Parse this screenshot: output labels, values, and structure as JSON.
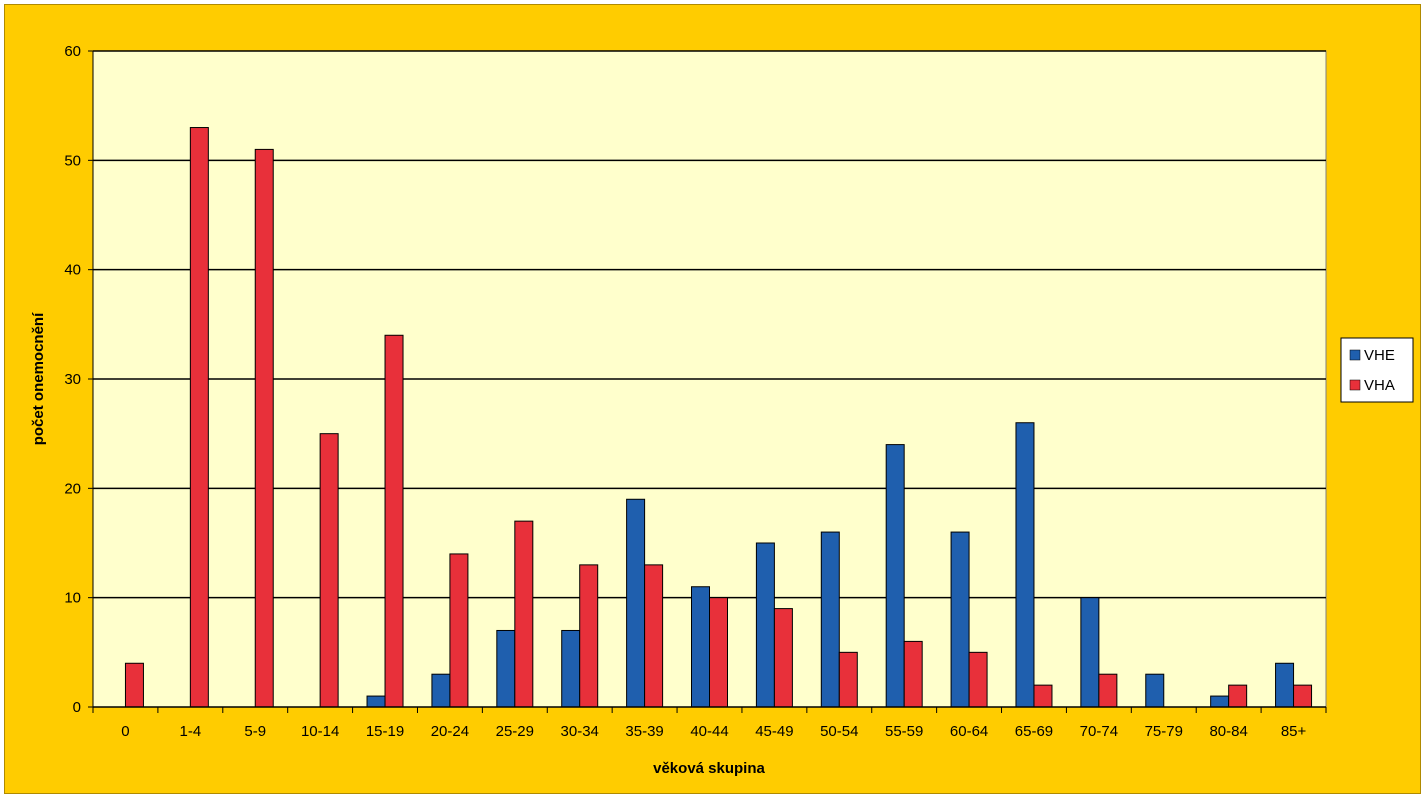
{
  "chart_data": {
    "type": "bar",
    "title": "",
    "xlabel": "věková skupina",
    "ylabel": "počet onemocnění",
    "ylim": [
      0,
      60
    ],
    "yticks": [
      0,
      10,
      20,
      30,
      40,
      50,
      60
    ],
    "grid": true,
    "legend_position": "right",
    "categories": [
      "0",
      "1-4",
      "5-9",
      "10-14",
      "15-19",
      "20-24",
      "25-29",
      "30-34",
      "35-39",
      "40-44",
      "45-49",
      "50-54",
      "55-59",
      "60-64",
      "65-69",
      "70-74",
      "75-79",
      "80-84",
      "85+"
    ],
    "series": [
      {
        "name": "VHE",
        "color": "#1f5fae",
        "values": [
          0,
          0,
          0,
          0,
          1,
          3,
          7,
          7,
          19,
          11,
          15,
          16,
          24,
          16,
          26,
          10,
          3,
          1,
          4
        ]
      },
      {
        "name": "VHA",
        "color": "#e8303a",
        "values": [
          4,
          53,
          51,
          25,
          34,
          14,
          17,
          13,
          13,
          10,
          9,
          5,
          6,
          5,
          2,
          3,
          0,
          2,
          2
        ]
      }
    ],
    "colors": {
      "background": "#ffcc00",
      "plot_area": "#ffffcc",
      "gridline": "#000000"
    }
  }
}
